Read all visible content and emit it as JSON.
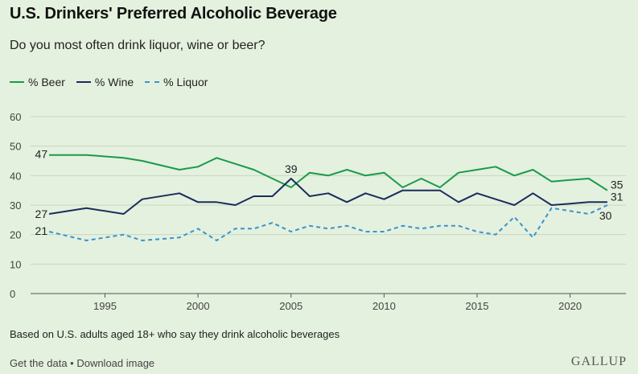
{
  "header": {
    "title": "U.S. Drinkers' Preferred Alcoholic Beverage",
    "subtitle": "Do you most often drink liquor, wine or beer?"
  },
  "footnote": "Based on U.S. adults aged 18+ who say they drink alcoholic beverages",
  "footer": {
    "links": "Get the data • Download image",
    "logo": "GALLUP"
  },
  "chart_data": {
    "type": "line",
    "title": "U.S. Drinkers' Preferred Alcoholic Beverage",
    "subtitle": "Do you most often drink liquor, wine or beer?",
    "xlabel": "",
    "ylabel": "",
    "xlim": [
      1991,
      2023
    ],
    "ylim": [
      0,
      60
    ],
    "xticks": [
      1995,
      2000,
      2005,
      2010,
      2015,
      2020
    ],
    "yticks": [
      0,
      10,
      20,
      30,
      40,
      50,
      60
    ],
    "grid": "horizontal",
    "legend_position": "top-left",
    "series": [
      {
        "name": "% Beer",
        "color": "#1a9a4a",
        "dash": "solid",
        "x": [
          1992,
          1994,
          1996,
          1997,
          1999,
          2000,
          2001,
          2002,
          2003,
          2004,
          2005,
          2006,
          2007,
          2008,
          2009,
          2010,
          2011,
          2012,
          2013,
          2014,
          2015,
          2016,
          2017,
          2018,
          2019,
          2020,
          2021,
          2022
        ],
        "y": [
          47,
          47,
          46,
          45,
          42,
          43,
          46,
          44,
          42,
          39,
          36,
          41,
          40,
          42,
          40,
          41,
          36,
          39,
          36,
          41,
          42,
          43,
          40,
          42,
          38,
          38.5,
          39,
          35
        ]
      },
      {
        "name": "% Wine",
        "color": "#1b2c5e",
        "dash": "solid",
        "x": [
          1992,
          1994,
          1996,
          1997,
          1999,
          2000,
          2001,
          2002,
          2003,
          2004,
          2005,
          2006,
          2007,
          2008,
          2009,
          2010,
          2011,
          2012,
          2013,
          2014,
          2015,
          2016,
          2017,
          2018,
          2019,
          2020,
          2021,
          2022
        ],
        "y": [
          27,
          29,
          27,
          32,
          34,
          31,
          31,
          30,
          33,
          33,
          39,
          33,
          34,
          31,
          34,
          32,
          35,
          35,
          35,
          31,
          34,
          32,
          30,
          34,
          30,
          30.5,
          31,
          31
        ]
      },
      {
        "name": "% Liquor",
        "color": "#3a93cf",
        "dash": "dashed",
        "x": [
          1992,
          1994,
          1996,
          1997,
          1999,
          2000,
          2001,
          2002,
          2003,
          2004,
          2005,
          2006,
          2007,
          2008,
          2009,
          2010,
          2011,
          2012,
          2013,
          2014,
          2015,
          2016,
          2017,
          2018,
          2019,
          2020,
          2021,
          2022
        ],
        "y": [
          21,
          18,
          20,
          18,
          19,
          22,
          18,
          22,
          22,
          24,
          21,
          23,
          22,
          23,
          21,
          21,
          23,
          22,
          23,
          23,
          21,
          20,
          26,
          19,
          29,
          28,
          27,
          30
        ]
      }
    ],
    "annotations": [
      {
        "series": 0,
        "index": 0,
        "text": "47"
      },
      {
        "series": 1,
        "index": 0,
        "text": "27"
      },
      {
        "series": 2,
        "index": 0,
        "text": "21"
      },
      {
        "series": 1,
        "index": 10,
        "text": "39"
      },
      {
        "series": 0,
        "index": 27,
        "text": "35"
      },
      {
        "series": 1,
        "index": 27,
        "text": "31"
      },
      {
        "series": 2,
        "index": 27,
        "text": "30"
      }
    ]
  }
}
